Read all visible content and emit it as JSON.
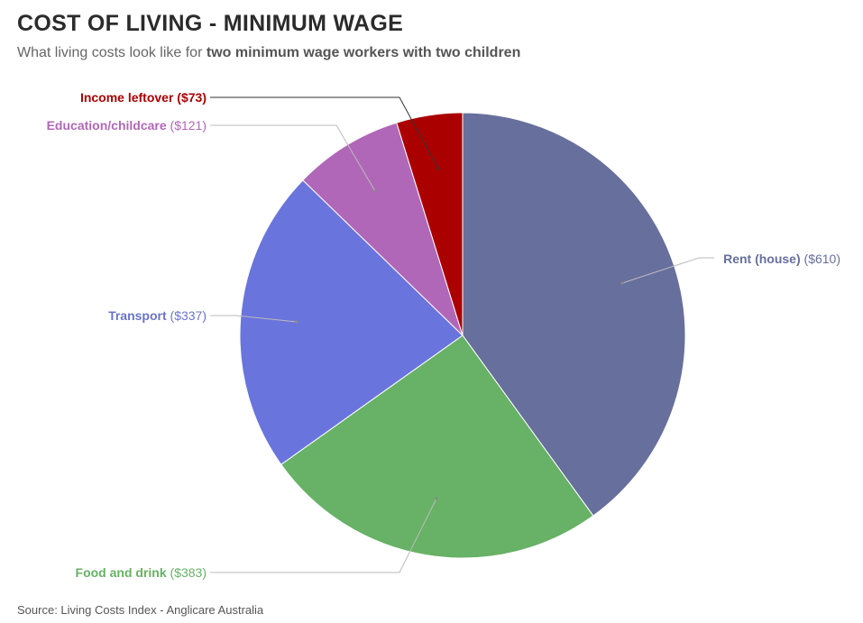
{
  "title": "COST OF LIVING - MINIMUM WAGE",
  "subtitle": {
    "prefix": "What living costs look like for ",
    "emphasis": "two minimum wage workers with two children"
  },
  "source": "Source: Living Costs Index - Anglicare Australia",
  "chart_data": {
    "type": "pie",
    "slices": [
      {
        "name": "Rent (house)",
        "value": 610,
        "value_label": "($610)",
        "color": "#676f9c",
        "label_color": "#676f9c"
      },
      {
        "name": "Food and drink",
        "value": 383,
        "value_label": "($383)",
        "color": "#67b266",
        "label_color": "#67b266"
      },
      {
        "name": "Transport",
        "value": 337,
        "value_label": "($337)",
        "color": "#6a74dd",
        "label_color": "#6a74c9"
      },
      {
        "name": "Education/childcare",
        "value": 121,
        "value_label": "($121)",
        "color": "#b067b7",
        "label_color": "#b067b7"
      },
      {
        "name": "Income leftover",
        "value": 73,
        "value_label": "($73)",
        "color": "#aa0000",
        "label_color": "#aa0000"
      }
    ]
  }
}
